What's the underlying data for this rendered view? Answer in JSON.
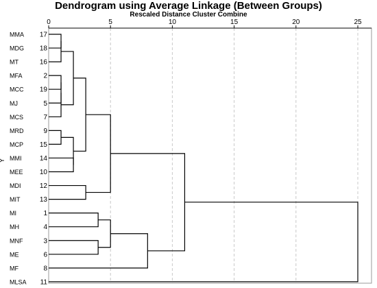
{
  "chart_data": {
    "type": "dendrogram",
    "title": "Dendrogram using Average Linkage (Between Groups)",
    "subtitle": "Rescaled Distance Cluster Combine",
    "ylabel": "Y",
    "xlim": [
      0,
      25
    ],
    "x_ticks": [
      0,
      5,
      10,
      15,
      20,
      25
    ],
    "grid": "vertical dashed",
    "leaves": [
      {
        "name": "MMA",
        "id": 17
      },
      {
        "name": "MDG",
        "id": 18
      },
      {
        "name": "MT",
        "id": 16
      },
      {
        "name": "MFA",
        "id": 2
      },
      {
        "name": "MCC",
        "id": 19
      },
      {
        "name": "MJ",
        "id": 5
      },
      {
        "name": "MCS",
        "id": 7
      },
      {
        "name": "MRD",
        "id": 9
      },
      {
        "name": "MCP",
        "id": 15
      },
      {
        "name": "MMI",
        "id": 14
      },
      {
        "name": "MEE",
        "id": 10
      },
      {
        "name": "MDI",
        "id": 12
      },
      {
        "name": "MIT",
        "id": 13
      },
      {
        "name": "MI",
        "id": 1
      },
      {
        "name": "MH",
        "id": 4
      },
      {
        "name": "MNF",
        "id": 3
      },
      {
        "name": "ME",
        "id": 6
      },
      {
        "name": "MF",
        "id": 8
      },
      {
        "name": "MLSA",
        "id": 11
      }
    ],
    "merges": [
      {
        "a": "MMA",
        "b": "MDG",
        "height": 1.0
      },
      {
        "a": "C1",
        "b": "MT",
        "height": 1.0
      },
      {
        "a": "MFA",
        "b": "MCC",
        "height": 1.0
      },
      {
        "a": "C3",
        "b": "MJ",
        "height": 1.0
      },
      {
        "a": "C4",
        "b": "MCS",
        "height": 1.0
      },
      {
        "a": "MRD",
        "b": "MCP",
        "height": 1.0
      },
      {
        "a": "C2",
        "b": "C5",
        "height": 2.0
      },
      {
        "a": "MMI",
        "b": "MEE",
        "height": 2.0
      },
      {
        "a": "C6",
        "b": "C8",
        "height": 2.0
      },
      {
        "a": "C7",
        "b": "C9",
        "height": 3.0
      },
      {
        "a": "MDI",
        "b": "MIT",
        "height": 3.0
      },
      {
        "a": "MI",
        "b": "MH",
        "height": 4.0
      },
      {
        "a": "MNF",
        "b": "ME",
        "height": 4.0
      },
      {
        "a": "C12",
        "b": "C13",
        "height": 5.0
      },
      {
        "a": "C10",
        "b": "C11",
        "height": 5.0
      },
      {
        "a": "C14",
        "b": "MF",
        "height": 8.0
      },
      {
        "a": "C15",
        "b": "C16",
        "height": 11.0
      },
      {
        "a": "C17",
        "b": "MLSA",
        "height": 25.0
      }
    ]
  }
}
